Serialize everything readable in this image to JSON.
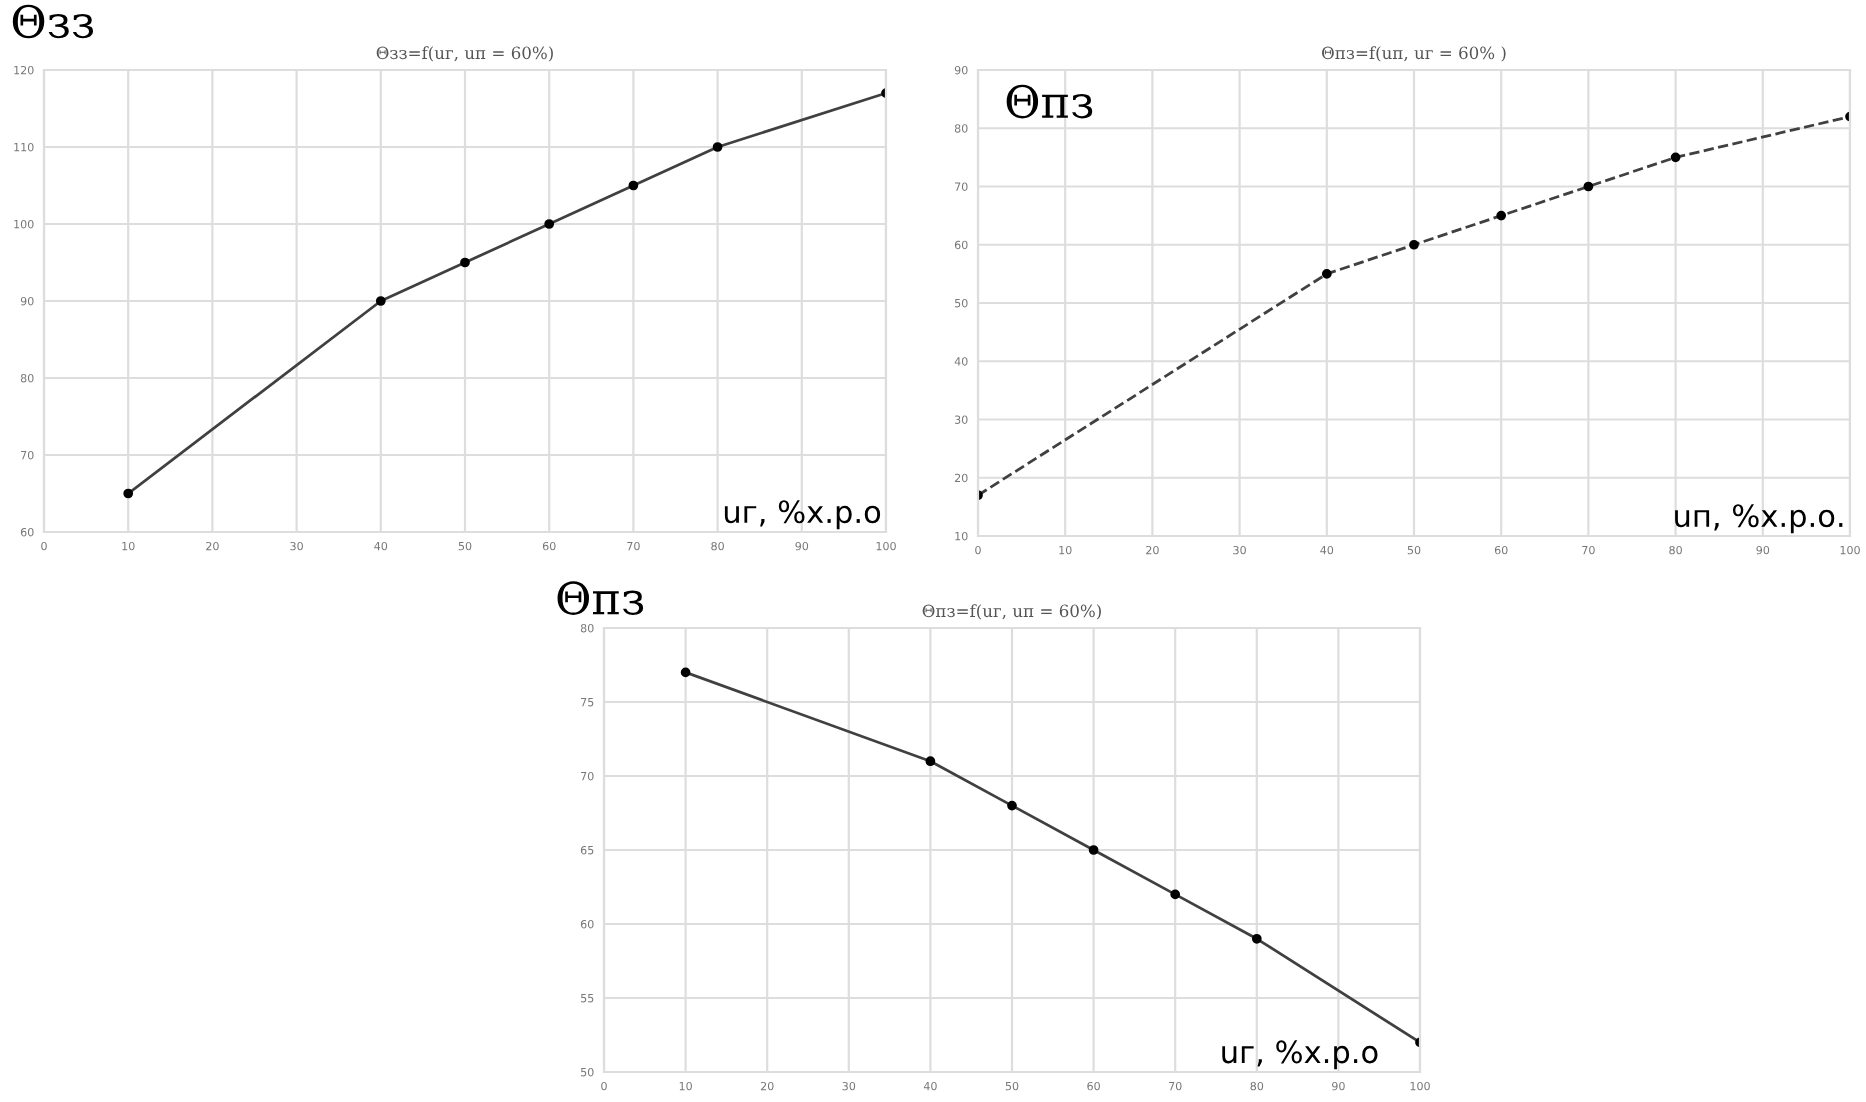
{
  "chart_data": [
    {
      "type": "line",
      "title": "Θзз=f(uг, uп = 60%)",
      "ylabel": "Θзз",
      "xlabel": "uг, %х.р.о",
      "x": [
        10,
        40,
        50,
        60,
        70,
        80,
        100
      ],
      "series": [
        {
          "color": "#404040",
          "values": [
            65,
            90,
            95,
            100,
            105,
            110,
            117
          ]
        }
      ],
      "xlim": [
        0,
        100
      ],
      "xticks": [
        0,
        10,
        20,
        30,
        40,
        50,
        60,
        70,
        80,
        90,
        100
      ],
      "ylim": [
        60,
        120
      ],
      "yticks": [
        60,
        70,
        80,
        90,
        100,
        110,
        120
      ],
      "grid": true,
      "marker": "circle",
      "line_style": "solid"
    },
    {
      "type": "line",
      "title": "Θпз=f(uп, uг = 60% )",
      "ylabel": "Θпз",
      "xlabel": "uп, %х.р.о.",
      "x": [
        0,
        40,
        50,
        60,
        70,
        80,
        100
      ],
      "series": [
        {
          "color": "#404040",
          "values": [
            17,
            55,
            60,
            65,
            70,
            75,
            82
          ]
        }
      ],
      "xlim": [
        0,
        100
      ],
      "xticks": [
        0,
        10,
        20,
        30,
        40,
        50,
        60,
        70,
        80,
        90,
        100
      ],
      "ylim": [
        10,
        90
      ],
      "yticks": [
        10,
        20,
        30,
        40,
        50,
        60,
        70,
        80,
        90
      ],
      "grid": true,
      "marker": "circle",
      "line_style": "dashed"
    },
    {
      "type": "line",
      "title": "Θпз=f(uг, uп = 60%)",
      "ylabel": "Θпз",
      "xlabel": "uг, %х.р.о",
      "x": [
        10,
        40,
        50,
        60,
        70,
        80,
        100
      ],
      "series": [
        {
          "color": "#404040",
          "values": [
            77,
            71,
            68,
            65,
            62,
            59,
            52
          ]
        }
      ],
      "xlim": [
        0,
        100
      ],
      "xticks": [
        0,
        10,
        20,
        30,
        40,
        50,
        60,
        70,
        80,
        90,
        100
      ],
      "ylim": [
        50,
        80
      ],
      "yticks": [
        50,
        55,
        60,
        65,
        70,
        75,
        80
      ],
      "grid": true,
      "marker": "circle",
      "line_style": "solid"
    }
  ]
}
